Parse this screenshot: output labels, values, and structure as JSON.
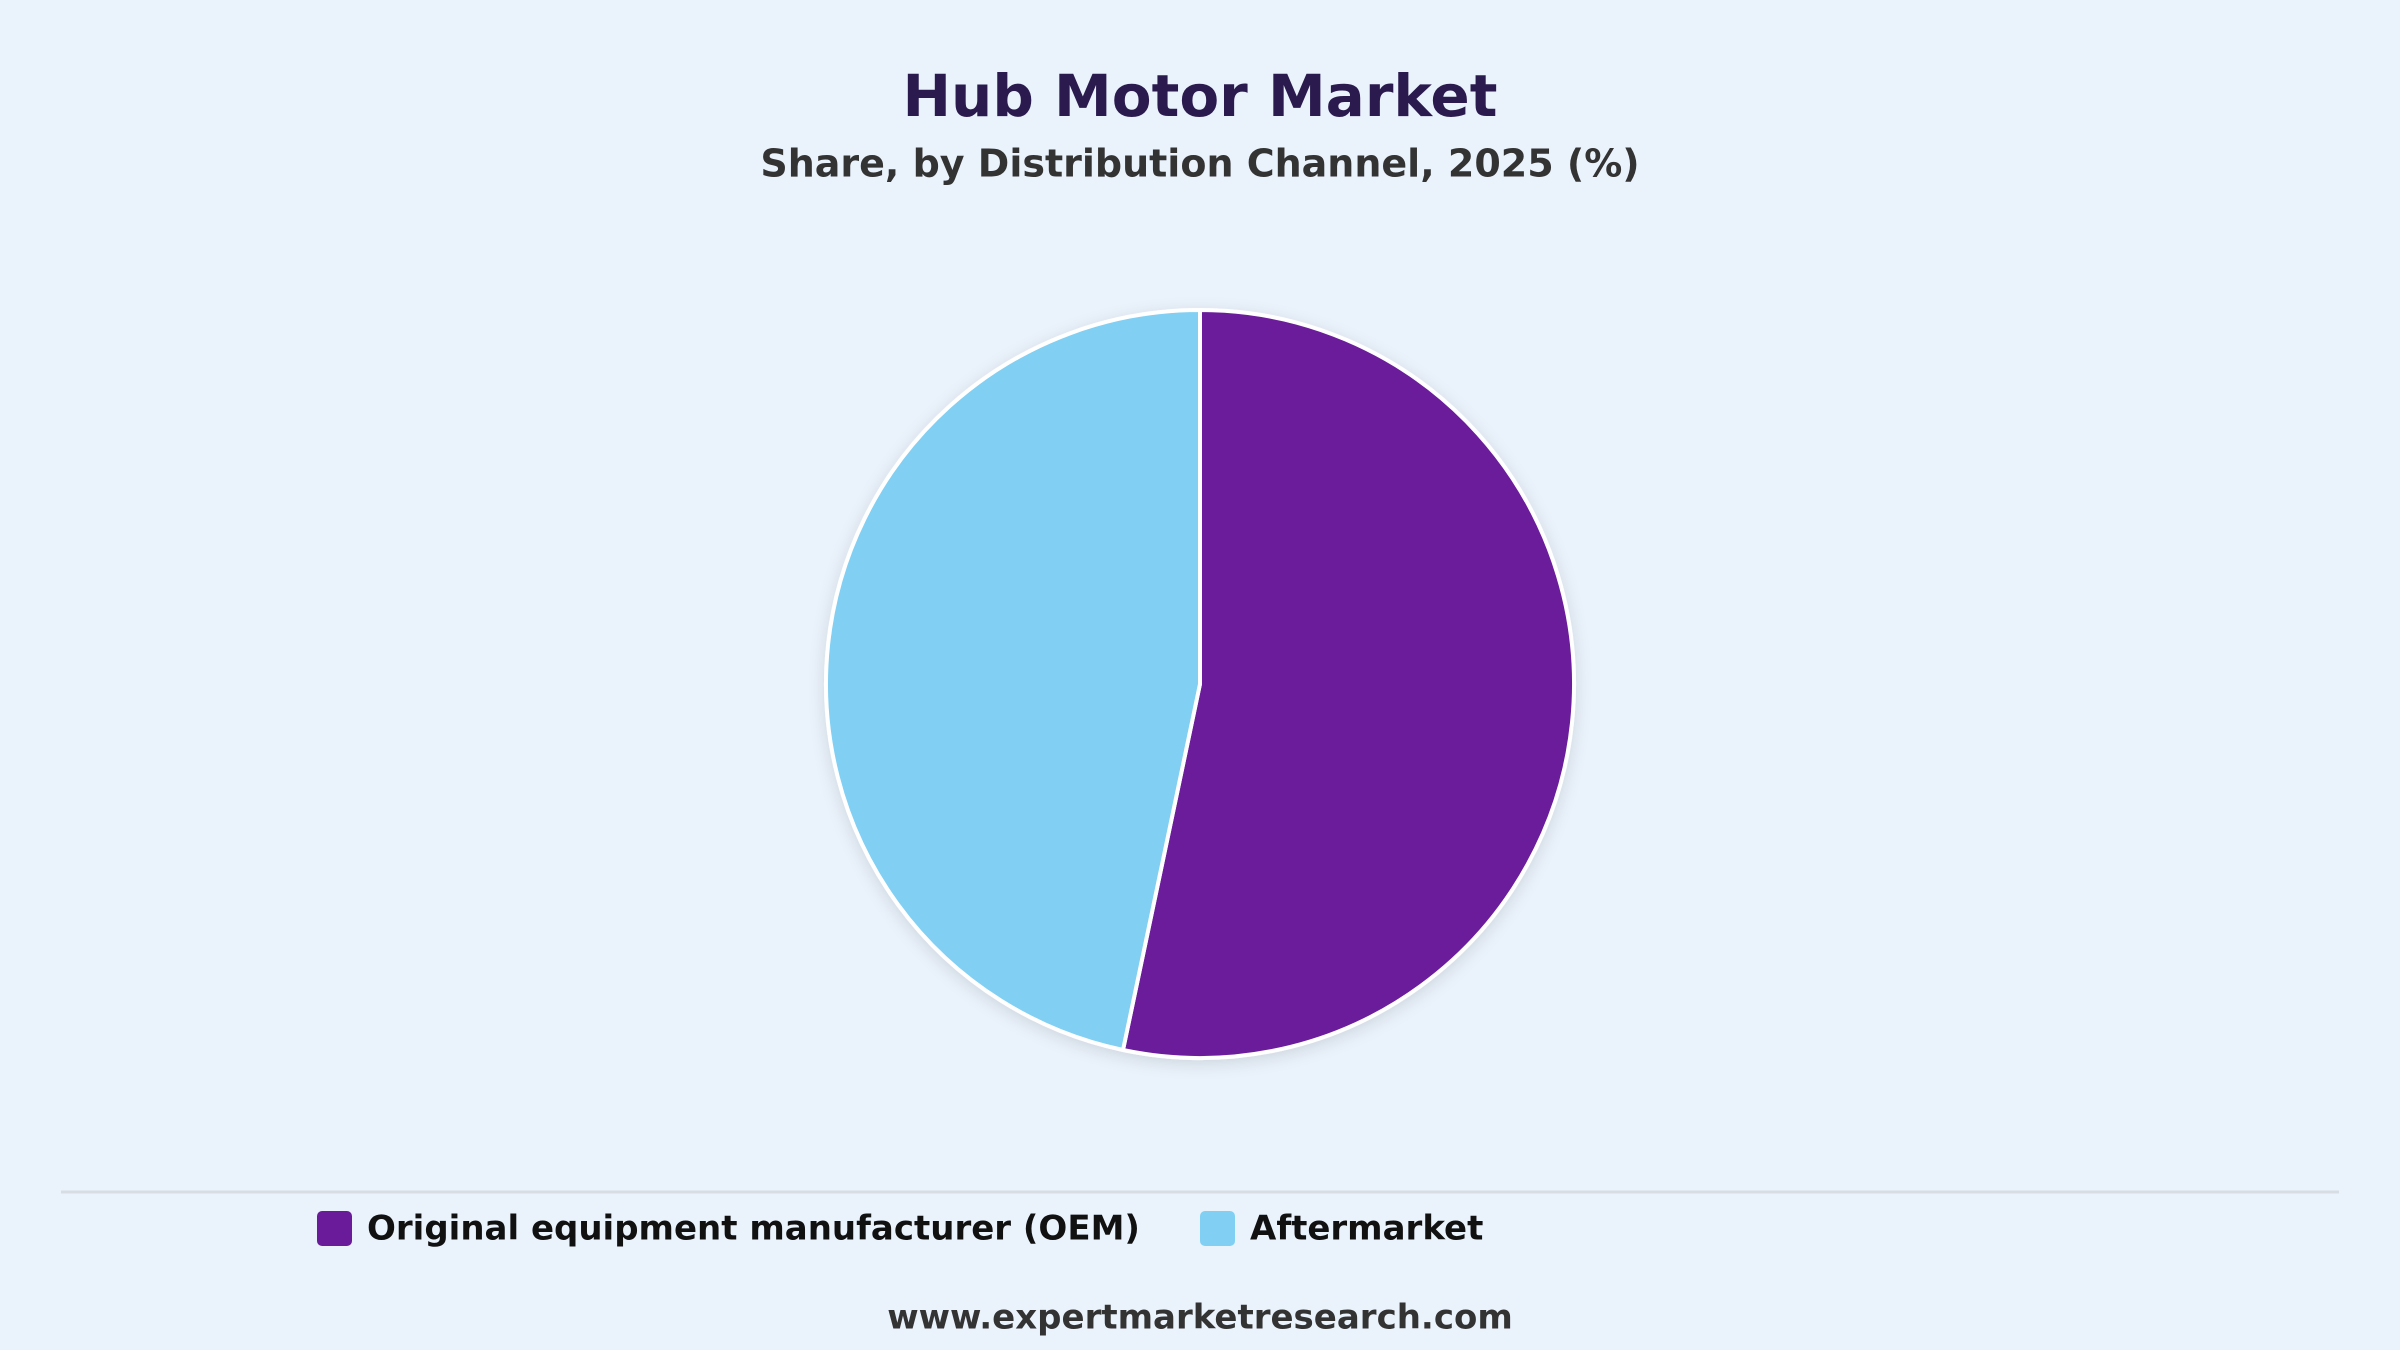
{
  "chart_data": {
    "type": "pie",
    "title": "Hub Motor Market",
    "subtitle": "Share, by Distribution Channel, 2025 (%)",
    "categories": [
      "Original equipment manufacturer (OEM)",
      "Aftermarket"
    ],
    "values": [
      53.3,
      46.7
    ],
    "colors": [
      "#6a1b9a",
      "#81cff2"
    ],
    "legend": "bottom",
    "source": "www.expertmarketresearch.com"
  }
}
